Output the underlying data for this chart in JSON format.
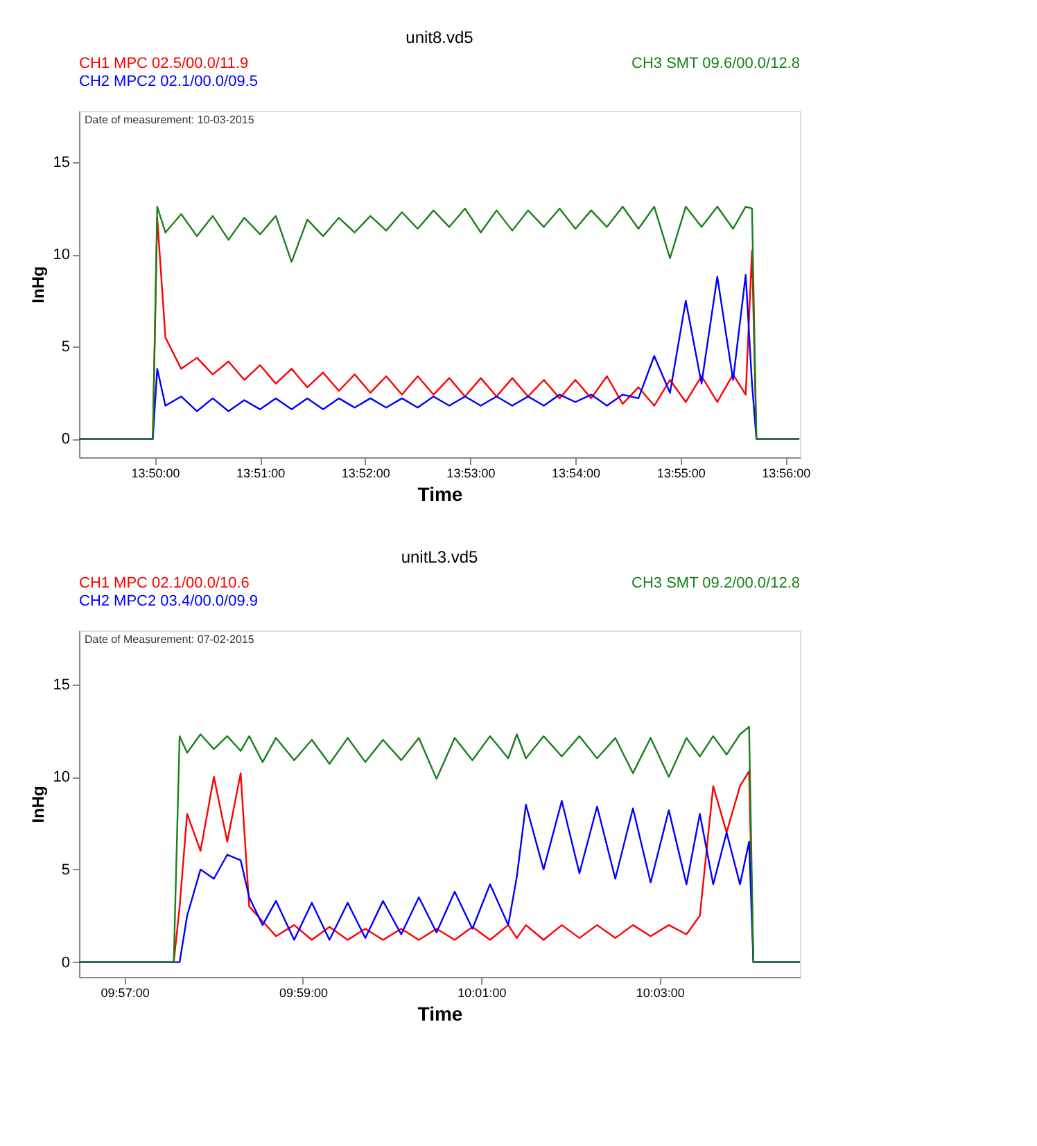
{
  "chart_data": [
    {
      "type": "line",
      "title": "unit8.vd5",
      "xlabel": "Time",
      "ylabel": "InHg",
      "legend": "top",
      "grid": false,
      "annotations": [
        "Date of measurement: 10-03-2015"
      ],
      "xlim": [
        13.8213,
        13.9356
      ],
      "ylim": [
        -1,
        17.8
      ],
      "yticks": [
        0,
        5,
        10,
        15
      ],
      "xticks": [
        {
          "value": 13.83333,
          "label": "13:50:00"
        },
        {
          "value": 13.85,
          "label": "13:51:00"
        },
        {
          "value": 13.86667,
          "label": "13:52:00"
        },
        {
          "value": 13.88333,
          "label": "13:53:00"
        },
        {
          "value": 13.9,
          "label": "13:54:00"
        },
        {
          "value": 13.91667,
          "label": "13:55:00"
        },
        {
          "value": 13.93333,
          "label": "13:56:00"
        }
      ],
      "x": [
        13.8213,
        13.833,
        13.8337,
        13.835,
        13.8375,
        13.84,
        13.8425,
        13.845,
        13.8475,
        13.85,
        13.8525,
        13.855,
        13.8575,
        13.86,
        13.8625,
        13.865,
        13.8675,
        13.87,
        13.8725,
        13.875,
        13.8775,
        13.88,
        13.8825,
        13.885,
        13.8875,
        13.89,
        13.8925,
        13.895,
        13.8975,
        13.9,
        13.9025,
        13.905,
        13.9075,
        13.91,
        13.9125,
        13.915,
        13.9175,
        13.92,
        13.9225,
        13.925,
        13.927,
        13.928,
        13.9287,
        13.9355
      ],
      "series": [
        {
          "name": "CH1 MPC 02.5/00.0/11.9",
          "color": "#ff0000",
          "values": [
            0,
            0,
            12.0,
            5.5,
            3.8,
            4.4,
            3.5,
            4.2,
            3.2,
            4.0,
            3.0,
            3.8,
            2.8,
            3.6,
            2.6,
            3.5,
            2.5,
            3.4,
            2.4,
            3.4,
            2.4,
            3.3,
            2.3,
            3.3,
            2.3,
            3.3,
            2.3,
            3.2,
            2.2,
            3.2,
            2.2,
            3.4,
            1.9,
            2.8,
            1.8,
            3.2,
            2.0,
            3.4,
            2.0,
            3.5,
            2.4,
            10.2,
            0,
            0
          ]
        },
        {
          "name": "CH2 MPC2 02.1/00.0/09.5",
          "color": "#0000ff",
          "values": [
            0,
            0,
            3.8,
            1.8,
            2.3,
            1.5,
            2.2,
            1.5,
            2.1,
            1.6,
            2.2,
            1.6,
            2.2,
            1.6,
            2.2,
            1.7,
            2.2,
            1.7,
            2.2,
            1.7,
            2.3,
            1.8,
            2.3,
            1.8,
            2.3,
            1.8,
            2.3,
            1.8,
            2.4,
            2.0,
            2.4,
            1.8,
            2.4,
            2.2,
            4.5,
            2.5,
            7.5,
            3.0,
            8.8,
            3.2,
            8.9,
            3.0,
            0,
            0
          ]
        },
        {
          "name": "CH3 SMT 09.6/00.0/12.8",
          "color": "#1a801a",
          "values": [
            0,
            0,
            12.6,
            11.2,
            12.2,
            11.0,
            12.1,
            10.8,
            12.0,
            11.1,
            12.1,
            9.6,
            11.9,
            11.0,
            12.0,
            11.2,
            12.1,
            11.3,
            12.3,
            11.4,
            12.4,
            11.5,
            12.5,
            11.2,
            12.4,
            11.3,
            12.4,
            11.5,
            12.5,
            11.4,
            12.4,
            11.5,
            12.6,
            11.4,
            12.6,
            9.8,
            12.6,
            11.5,
            12.6,
            11.4,
            12.6,
            12.5,
            0,
            0
          ]
        }
      ]
    },
    {
      "type": "line",
      "title": "unitL3.vd5",
      "xlabel": "Time",
      "ylabel": "InHg",
      "legend": "top",
      "grid": false,
      "annotations": [
        "Date of Measurement: 07-02-2015"
      ],
      "xlim": [
        9.9415,
        10.0762
      ],
      "ylim": [
        -0.8,
        17.9
      ],
      "yticks": [
        0,
        5,
        10,
        15
      ],
      "xticks": [
        {
          "value": 9.95,
          "label": "09:57:00"
        },
        {
          "value": 9.98333,
          "label": "09:59:00"
        },
        {
          "value": 10.01667,
          "label": "10:01:00"
        },
        {
          "value": 10.05,
          "label": "10:03:00"
        }
      ],
      "x": [
        9.9415,
        9.9592,
        9.9603,
        9.9617,
        9.9642,
        9.9667,
        9.9692,
        9.9717,
        9.9733,
        9.9758,
        9.9783,
        9.9817,
        9.985,
        9.9883,
        9.9917,
        9.995,
        9.9983,
        10.0017,
        10.005,
        10.0083,
        10.0117,
        10.015,
        10.0183,
        10.0217,
        10.0233,
        10.025,
        10.0283,
        10.0317,
        10.035,
        10.0383,
        10.0417,
        10.045,
        10.0483,
        10.0517,
        10.055,
        10.0575,
        10.06,
        10.0625,
        10.065,
        10.0667,
        10.0675,
        10.0762
      ],
      "series": [
        {
          "name": "CH1 MPC 02.1/00.0/10.6",
          "color": "#ff0000",
          "values": [
            0,
            0,
            3.0,
            8.0,
            6.0,
            10.0,
            6.5,
            10.2,
            3.0,
            2.2,
            1.4,
            2.0,
            1.2,
            1.9,
            1.2,
            1.8,
            1.2,
            1.8,
            1.2,
            1.8,
            1.2,
            1.9,
            1.2,
            2.0,
            1.3,
            2.0,
            1.2,
            2.0,
            1.3,
            2.0,
            1.3,
            2.0,
            1.4,
            2.0,
            1.5,
            2.5,
            9.5,
            7.0,
            9.5,
            10.3,
            0,
            0
          ]
        },
        {
          "name": "CH2 MPC2 03.4/00.0/09.9",
          "color": "#0000ff",
          "values": [
            0,
            0,
            0,
            2.5,
            5.0,
            4.5,
            5.8,
            5.5,
            3.5,
            2.0,
            3.3,
            1.2,
            3.2,
            1.2,
            3.2,
            1.3,
            3.3,
            1.5,
            3.5,
            1.6,
            3.8,
            1.8,
            4.2,
            2.0,
            4.6,
            8.5,
            5.0,
            8.7,
            4.8,
            8.4,
            4.5,
            8.3,
            4.3,
            8.2,
            4.2,
            8.0,
            4.2,
            7.0,
            4.2,
            6.5,
            0,
            0
          ]
        },
        {
          "name": "CH3 SMT 09.2/00.0/12.8",
          "color": "#1a801a",
          "values": [
            0,
            0,
            12.2,
            11.3,
            12.3,
            11.5,
            12.2,
            11.4,
            12.2,
            10.8,
            12.1,
            10.9,
            12.0,
            10.7,
            12.1,
            10.8,
            12.0,
            10.9,
            12.1,
            9.9,
            12.1,
            10.9,
            12.2,
            11.0,
            12.3,
            11.0,
            12.2,
            11.1,
            12.2,
            11.0,
            12.1,
            10.2,
            12.1,
            10.0,
            12.1,
            11.1,
            12.2,
            11.2,
            12.3,
            12.7,
            0,
            0
          ]
        }
      ]
    }
  ]
}
